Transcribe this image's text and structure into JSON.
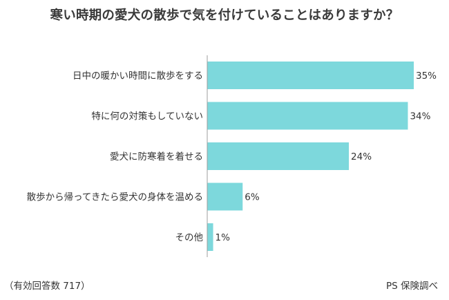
{
  "title": "寒い時期の愛犬の散歩で気を付けていることはありますか？",
  "footer": {
    "sample": "（有効回答数 717）",
    "source": "PS 保険調べ"
  },
  "colors": {
    "bar": "#7dd8dc",
    "axis": "#9e9e9e",
    "text": "#333333"
  },
  "chart_data": {
    "type": "bar",
    "orientation": "horizontal",
    "title": "寒い時期の愛犬の散歩で気を付けていることはありますか？",
    "categories": [
      "日中の暖かい時間に散歩をする",
      "特に何の対策もしていない",
      "愛犬に防寒着を着せる",
      "散歩から帰ってきたら愛犬の身体を温める",
      "その他"
    ],
    "values": [
      35,
      34,
      24,
      6,
      1
    ],
    "data_labels": [
      "35%",
      "34%",
      "24%",
      "6%",
      "1%"
    ],
    "unit": "%",
    "xlim": [
      0,
      35
    ],
    "grid": false,
    "legend": "none"
  }
}
